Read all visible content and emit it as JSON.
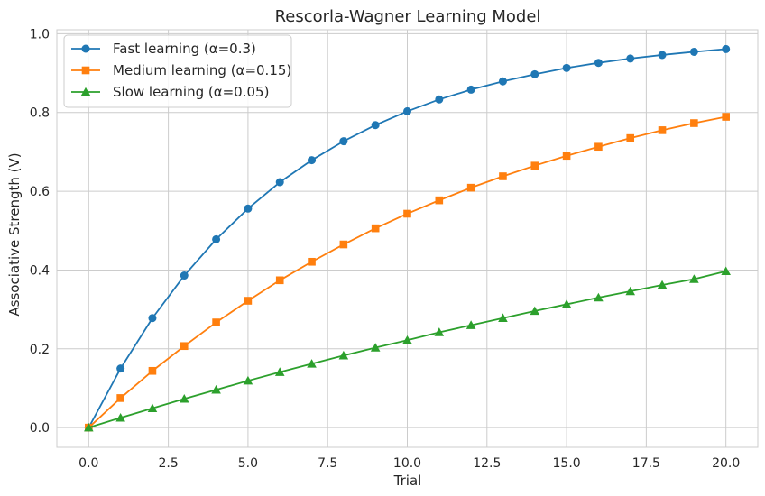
{
  "chart_data": {
    "type": "line",
    "title": "Rescorla-Wagner Learning Model",
    "xlabel": "Trial",
    "ylabel": "Associative Strength (V)",
    "xlim": [
      -1,
      21
    ],
    "ylim": [
      -0.05,
      1.01
    ],
    "x_ticks": [
      0,
      2.5,
      5,
      7.5,
      10,
      12.5,
      15,
      17.5,
      20
    ],
    "x_tick_labels": [
      "0.0",
      "2.5",
      "5.0",
      "7.5",
      "10.0",
      "12.5",
      "15.0",
      "17.5",
      "20.0"
    ],
    "y_ticks": [
      0,
      0.2,
      0.4,
      0.6,
      0.8,
      1.0
    ],
    "y_tick_labels": [
      "0.0",
      "0.2",
      "0.4",
      "0.6",
      "0.8",
      "1.0"
    ],
    "grid": true,
    "legend_position": "top-left",
    "x": [
      0,
      1,
      2,
      3,
      4,
      5,
      6,
      7,
      8,
      9,
      10,
      11,
      12,
      13,
      14,
      15,
      16,
      17,
      18,
      19,
      20
    ],
    "series": [
      {
        "name": "Fast learning (α=0.3)",
        "color": "#1f77b4",
        "marker": "circle",
        "values": [
          0.0,
          0.15,
          0.278,
          0.386,
          0.478,
          0.556,
          0.623,
          0.679,
          0.727,
          0.768,
          0.803,
          0.833,
          0.858,
          0.879,
          0.897,
          0.913,
          0.926,
          0.937,
          0.946,
          0.954,
          0.961
        ]
      },
      {
        "name": "Medium learning (α=0.15)",
        "color": "#ff7f0e",
        "marker": "square",
        "values": [
          0.0,
          0.075,
          0.144,
          0.207,
          0.267,
          0.322,
          0.374,
          0.421,
          0.465,
          0.506,
          0.543,
          0.577,
          0.609,
          0.638,
          0.665,
          0.69,
          0.713,
          0.735,
          0.755,
          0.773,
          0.789
        ]
      },
      {
        "name": "Slow learning (α=0.05)",
        "color": "#2ca02c",
        "marker": "triangle",
        "values": [
          0.0,
          0.025,
          0.049,
          0.073,
          0.096,
          0.119,
          0.141,
          0.162,
          0.183,
          0.203,
          0.222,
          0.242,
          0.26,
          0.278,
          0.296,
          0.313,
          0.33,
          0.346,
          0.362,
          0.377,
          0.397
        ]
      }
    ]
  },
  "colors": {
    "grid": "#cccccc",
    "axes_edge": "#cccccc",
    "text": "#262626"
  }
}
